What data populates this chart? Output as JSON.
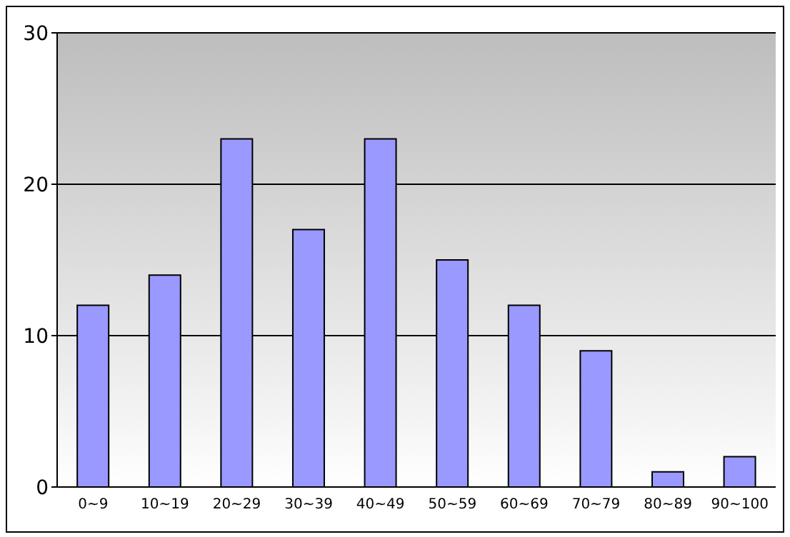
{
  "chart_data": {
    "type": "bar",
    "categories": [
      "0~9",
      "10~19",
      "20~29",
      "30~39",
      "40~49",
      "50~59",
      "60~69",
      "70~79",
      "80~89",
      "90~100"
    ],
    "values": [
      12,
      14,
      23,
      17,
      23,
      15,
      12,
      9,
      1,
      2
    ],
    "color": "#9999ff",
    "ylim": [
      0,
      30
    ],
    "yticks": [
      0,
      10,
      20,
      30
    ],
    "grid": "y"
  }
}
